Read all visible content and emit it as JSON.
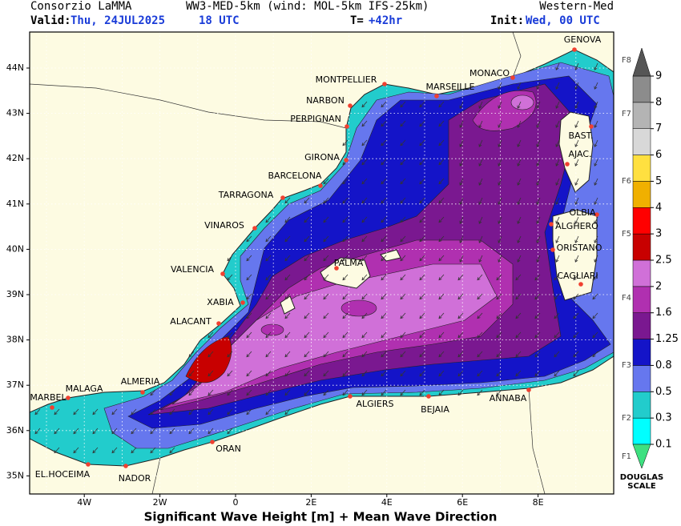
{
  "header": {
    "org": "Consorzio LaMMA",
    "model": "WW3-MED-5km (wind: MOL-5km IFS-25km)",
    "region": "Western-Med",
    "valid_label": "Valid:",
    "valid_date": "Thu, 24JUL2025",
    "valid_time": "18 UTC",
    "lead_label": "T=",
    "lead_value": "+42hr",
    "init_label": "Init:",
    "init_value": "Wed, 00 UTC"
  },
  "map": {
    "lat_labels": [
      "44N",
      "43N",
      "42N",
      "41N",
      "40N",
      "39N",
      "38N",
      "37N",
      "36N",
      "35N"
    ],
    "lon_labels": [
      "4W",
      "2W",
      "0",
      "2E",
      "4E",
      "6E",
      "8E"
    ],
    "cities": [
      "GENOVA",
      "MONACO",
      "MONTPELLIER",
      "MARSEILLE",
      "NARBON",
      "PERPIGNAN",
      "GIRONA",
      "BARCELONA",
      "TARRAGONA",
      "VINAROS",
      "VALENCIA",
      "PALMA",
      "XABIA",
      "ALACANT",
      "ALMERIA",
      "MALAGA",
      "MARBEL",
      "EL.HOCEIMA",
      "NADOR",
      "ORAN",
      "ALGIERS",
      "BEJAIA",
      "ANNABA",
      "BAST.",
      "AJAC.",
      "OLBIA",
      "ALGHERO",
      "ORISTANO",
      "CAGLIARI"
    ]
  },
  "colorbar": {
    "levels": [
      0.1,
      0.3,
      0.5,
      0.8,
      1.25,
      1.6,
      2,
      2.5,
      3,
      4,
      5,
      6,
      7,
      8,
      9
    ],
    "colors": [
      "#00ffff",
      "#22cccc",
      "#6677ee",
      "#1414c8",
      "#7a1890",
      "#b030b0",
      "#d070d8",
      "#c80000",
      "#ff0000",
      "#f0b000",
      "#ffe040",
      "#d8d8d8",
      "#b4b4b4",
      "#8c8c8c"
    ],
    "under_color": "#3ee080",
    "over_color": "#555555",
    "douglas": [
      "F1",
      "F2",
      "F3",
      "F4",
      "F5",
      "F6",
      "F7",
      "F8"
    ],
    "title_lines": [
      "DOUGLAS",
      "SCALE"
    ]
  },
  "footer": {
    "caption": "Significant Wave Height [m] + Mean Wave Direction"
  }
}
